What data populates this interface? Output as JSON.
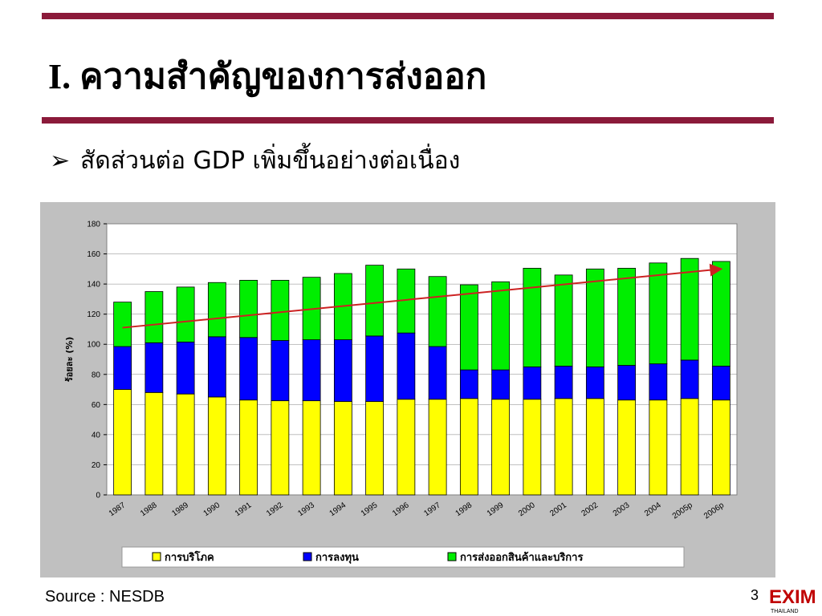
{
  "slide": {
    "title": "I.  ความสำคัญของการส่งออก",
    "bullet": "➢",
    "subtitle": "สัดส่วนต่อ GDP เพิ่มขึ้นอย่างต่อเนื่อง",
    "source": "Source : NESDB",
    "page_number": "3",
    "logo": "EXIM",
    "logo_sub": "THAILAND"
  },
  "chart_data": {
    "type": "stacked_bar",
    "y_label": "ร้อยละ (%)",
    "categories": [
      "1987",
      "1988",
      "1989",
      "1990",
      "1991",
      "1992",
      "1993",
      "1994",
      "1995",
      "1996",
      "1997",
      "1998",
      "1999",
      "2000",
      "2001",
      "2002",
      "2003",
      "2004",
      "2005p",
      "2006p"
    ],
    "series": [
      {
        "name": "การบริโภค",
        "color": "#ffff00",
        "values": [
          70,
          68,
          67,
          65,
          63,
          62.5,
          62.5,
          62,
          62,
          63.5,
          63.5,
          64,
          63.5,
          63.5,
          64,
          64,
          63,
          63,
          64,
          63
        ]
      },
      {
        "name": "การลงทุน",
        "color": "#0000ff",
        "values": [
          28.5,
          33,
          34.5,
          40,
          41.5,
          40,
          40.5,
          41,
          43.5,
          44,
          35,
          19,
          19.5,
          21.5,
          21.5,
          21,
          23,
          24,
          25.5,
          22.5
        ]
      },
      {
        "name": "การส่งออกสินค้าและบริการ",
        "color": "#00ee00",
        "values": [
          29.5,
          34,
          36.5,
          36,
          38,
          40,
          41.5,
          44,
          47,
          42.5,
          46.5,
          56.5,
          58.5,
          65.5,
          60.5,
          65,
          64.5,
          67,
          67.5,
          69.5
        ]
      }
    ],
    "trend": {
      "start": 111,
      "end": 150,
      "color": "#cc2222"
    },
    "ylim": [
      0,
      180
    ],
    "yticks": [
      0,
      20,
      40,
      60,
      80,
      100,
      120,
      140,
      160,
      180
    ],
    "grid": true
  }
}
